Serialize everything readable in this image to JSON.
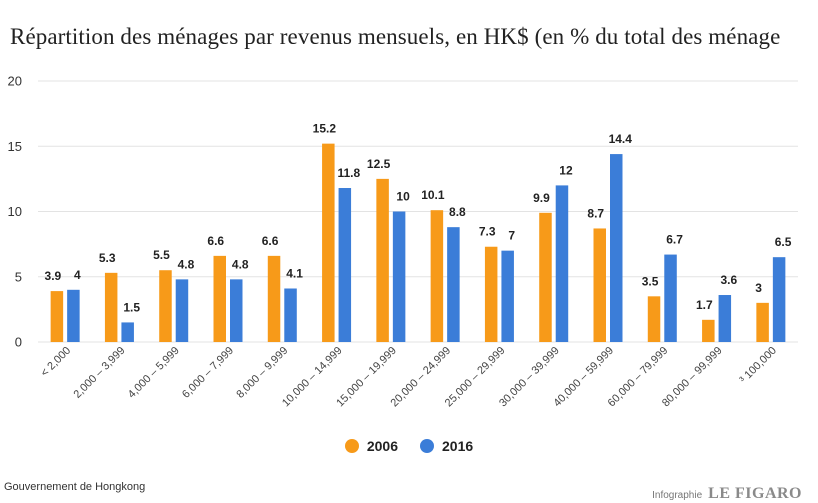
{
  "title": "Répartition des ménages par revenus mensuels, en HK$ (en % du total des ménage",
  "source": "Gouvernement de Hongkong",
  "credit": {
    "label": "Infographie",
    "logo": "LE FIGARO"
  },
  "colors": {
    "s2006": "#f79a19",
    "s2016": "#3b7dd8",
    "grid": "#e3e3e3",
    "text": "#222222"
  },
  "legend": [
    {
      "name": "2006",
      "color": "#f79a19"
    },
    {
      "name": "2016",
      "color": "#3b7dd8"
    }
  ],
  "chart_data": {
    "type": "bar",
    "title": "Répartition des ménages par revenus mensuels, en HK$ (en % du total des ménage",
    "xlabel": "",
    "ylabel": "",
    "ylim": [
      0,
      20
    ],
    "yticks": [
      0,
      5,
      10,
      15,
      20
    ],
    "grid": true,
    "legend_position": "bottom",
    "categories": [
      "< 2,000",
      "2,000 – 3,999",
      "4,000 – 5,999",
      "6,000 – 7,999",
      "8,000 – 9,999",
      "10,000 – 14,999",
      "15,000 – 19,999",
      "20,000 – 24,999",
      "25,000 – 29,999",
      "30,000 – 39,999",
      "40,000 – 59,999",
      "60,000 – 79,999",
      "80,000 – 99,999",
      "³ 100,000"
    ],
    "series": [
      {
        "name": "2006",
        "values": [
          3.9,
          5.3,
          5.5,
          6.6,
          6.6,
          15.2,
          12.5,
          10.1,
          7.3,
          9.9,
          8.7,
          3.5,
          1.7,
          3
        ]
      },
      {
        "name": "2016",
        "values": [
          4,
          1.5,
          4.8,
          4.8,
          4.1,
          11.8,
          10,
          8.8,
          7,
          12,
          14.4,
          6.7,
          3.6,
          6.5
        ]
      }
    ]
  }
}
